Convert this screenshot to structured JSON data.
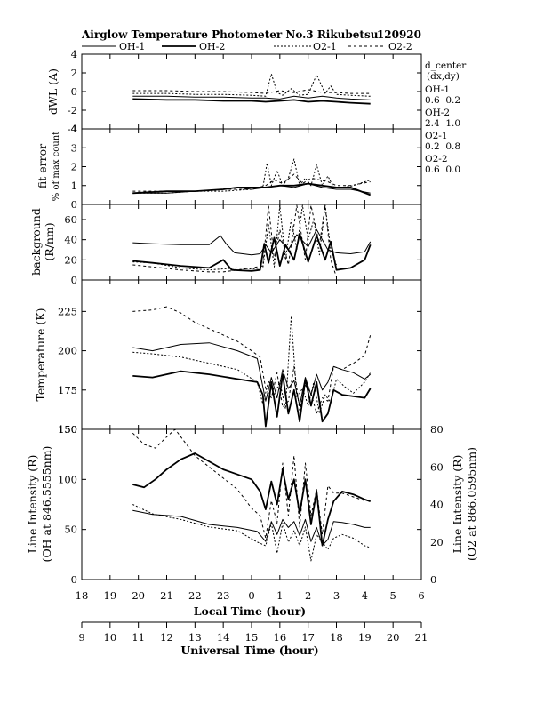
{
  "header": {
    "title": "Airglow Temperature Photometer No.3  Rikubetsu",
    "date": "120920"
  },
  "legend": [
    {
      "name": "OH-1",
      "dash": ""
    },
    {
      "name": "OH-2",
      "dash": "",
      "bold": true
    },
    {
      "name": "O2-1",
      "dash": "2,2"
    },
    {
      "name": "O2-2",
      "dash": "3,3"
    }
  ],
  "annotation": {
    "title": "d_center",
    "subtitle": "(dx,dy)",
    "entries": [
      {
        "name": "OH-1",
        "value": "0.6  0.2"
      },
      {
        "name": "OH-2",
        "value": "2.4  1.0"
      },
      {
        "name": "O2-1",
        "value": "0.2  0.8"
      },
      {
        "name": "O2-2",
        "value": "0.6  0.0"
      }
    ]
  },
  "axes": {
    "local_time": {
      "label": "Local Time (hour)",
      "ticks": [
        "18",
        "19",
        "20",
        "21",
        "22",
        "23",
        "0",
        "1",
        "2",
        "3",
        "4",
        "5",
        "6"
      ]
    },
    "universal_time": {
      "label": "Universal Time (hour)",
      "ticks": [
        "9",
        "10",
        "11",
        "12",
        "13",
        "14",
        "15",
        "16",
        "17",
        "18",
        "19",
        "20",
        "21"
      ]
    }
  },
  "chart_data": [
    {
      "type": "line",
      "panel": "dwl",
      "ylabel": "dWL (A)",
      "ylim": [
        -4,
        4
      ],
      "yticks": [
        "4",
        "2",
        "0",
        "-2",
        "-4"
      ],
      "x_unit": "Universal Time (hour)",
      "series": [
        {
          "name": "OH-1",
          "x": [
            10.8,
            12.0,
            13.0,
            14.0,
            15.0,
            15.5,
            16.0,
            16.5,
            17.0,
            17.5,
            18.0,
            18.5,
            19.2
          ],
          "y": [
            -0.5,
            -0.5,
            -0.6,
            -0.6,
            -0.7,
            -0.7,
            -0.8,
            -0.5,
            -0.7,
            -0.5,
            -0.7,
            -0.8,
            -0.9
          ]
        },
        {
          "name": "OH-2",
          "x": [
            10.8,
            12.0,
            13.0,
            14.0,
            15.0,
            15.5,
            16.0,
            16.5,
            17.0,
            17.5,
            18.0,
            18.5,
            19.2
          ],
          "y": [
            -0.8,
            -0.9,
            -0.9,
            -1.0,
            -1.0,
            -1.1,
            -1.0,
            -0.9,
            -1.1,
            -1.0,
            -1.1,
            -1.2,
            -1.3
          ]
        },
        {
          "name": "O2-1",
          "x": [
            10.8,
            12.0,
            13.0,
            14.0,
            15.0,
            15.5,
            15.7,
            15.9,
            16.1,
            16.4,
            16.7,
            17.0,
            17.3,
            17.6,
            17.8,
            18.0,
            18.5,
            19.2
          ],
          "y": [
            -0.2,
            -0.2,
            -0.3,
            -0.3,
            -0.4,
            -0.5,
            1.9,
            -0.1,
            -0.4,
            0.3,
            -0.4,
            -0.3,
            1.8,
            -0.2,
            0.6,
            -0.3,
            -0.4,
            -0.5
          ]
        },
        {
          "name": "O2-2",
          "x": [
            10.8,
            12.0,
            13.0,
            14.0,
            15.0,
            15.5,
            16.0,
            16.5,
            17.0,
            17.5,
            18.0,
            18.5,
            19.2
          ],
          "y": [
            0.1,
            0.1,
            0.0,
            0.0,
            -0.1,
            -0.2,
            0.1,
            -0.1,
            0.2,
            -0.1,
            -0.1,
            -0.2,
            -0.2
          ]
        }
      ]
    },
    {
      "type": "line",
      "panel": "fit_error",
      "ylabel": "fit error",
      "ylabel2": "% of max count",
      "ylim": [
        0,
        4
      ],
      "yticks": [
        "4",
        "3",
        "2",
        "1",
        "0"
      ],
      "x_unit": "Universal Time (hour)",
      "series": [
        {
          "name": "OH-1",
          "x": [
            10.8,
            12.0,
            13.0,
            14.0,
            14.5,
            15.0,
            15.5,
            16.0,
            16.5,
            17.0,
            17.5,
            18.0,
            18.5,
            19.2
          ],
          "y": [
            0.6,
            0.6,
            0.7,
            0.8,
            0.9,
            0.8,
            0.9,
            1.0,
            0.9,
            1.1,
            0.9,
            0.8,
            0.8,
            0.6
          ]
        },
        {
          "name": "OH-2",
          "x": [
            10.8,
            12.0,
            13.0,
            14.0,
            14.5,
            15.0,
            15.5,
            16.0,
            16.5,
            17.0,
            17.5,
            18.0,
            18.5,
            19.2
          ],
          "y": [
            0.6,
            0.7,
            0.7,
            0.8,
            0.9,
            0.9,
            0.9,
            1.0,
            1.0,
            1.1,
            1.0,
            0.9,
            0.9,
            0.5
          ]
        },
        {
          "name": "O2-1",
          "x": [
            10.8,
            12.0,
            13.0,
            14.0,
            15.0,
            15.4,
            15.55,
            15.7,
            15.9,
            16.1,
            16.3,
            16.5,
            16.7,
            16.9,
            17.1,
            17.3,
            17.5,
            17.7,
            17.9,
            18.2,
            18.6,
            19.2
          ],
          "y": [
            0.6,
            0.6,
            0.7,
            0.7,
            0.8,
            0.9,
            2.2,
            1.0,
            1.8,
            1.0,
            1.4,
            2.4,
            1.0,
            1.4,
            1.0,
            2.1,
            1.0,
            1.5,
            0.9,
            0.9,
            1.0,
            1.3
          ]
        },
        {
          "name": "O2-2",
          "x": [
            10.8,
            12.0,
            13.0,
            14.0,
            15.0,
            15.5,
            15.8,
            16.1,
            16.5,
            16.8,
            17.1,
            17.4,
            17.7,
            18.0,
            18.5,
            19.2
          ],
          "y": [
            0.7,
            0.7,
            0.7,
            0.8,
            0.8,
            1.0,
            1.3,
            1.1,
            1.6,
            1.1,
            1.4,
            1.3,
            1.2,
            1.0,
            1.0,
            1.2
          ]
        }
      ]
    },
    {
      "type": "line",
      "panel": "background",
      "ylabel": "background",
      "ylabel2": "(R/nm)",
      "ylim": [
        0,
        75
      ],
      "yticks": [
        "60",
        "40",
        "20",
        "0"
      ],
      "x_unit": "Universal Time (hour)",
      "series": [
        {
          "name": "OH-1",
          "x": [
            10.8,
            11.5,
            12.5,
            13.5,
            13.9,
            14.1,
            14.4,
            15.0,
            15.3,
            15.5,
            15.7,
            16.0,
            16.3,
            16.6,
            17.0,
            17.3,
            17.7,
            18.0,
            18.5,
            19.0,
            19.2
          ],
          "y": [
            37,
            36,
            35,
            35,
            44,
            36,
            27,
            25,
            26,
            35,
            27,
            40,
            30,
            45,
            33,
            50,
            30,
            27,
            26,
            28,
            38
          ]
        },
        {
          "name": "OH-2",
          "x": [
            10.8,
            11.5,
            12.5,
            13.5,
            14.0,
            14.3,
            15.0,
            15.3,
            15.45,
            15.6,
            15.8,
            16.0,
            16.2,
            16.5,
            16.7,
            17.0,
            17.3,
            17.6,
            17.8,
            18.0,
            18.5,
            19.0,
            19.2
          ],
          "y": [
            19,
            17,
            14,
            12,
            20,
            10,
            9,
            10,
            36,
            17,
            42,
            14,
            35,
            20,
            46,
            18,
            44,
            20,
            38,
            10,
            12,
            20,
            35
          ]
        },
        {
          "name": "O2-1",
          "x": [
            10.8,
            11.5,
            12.5,
            13.5,
            14.0,
            14.5,
            15.0,
            15.4,
            15.6,
            15.8,
            16.0,
            16.2,
            16.4,
            16.6,
            16.8,
            17.0,
            17.2,
            17.4,
            17.6,
            17.8,
            18.0
          ],
          "y": [
            18,
            17,
            12,
            10,
            11,
            12,
            11,
            12,
            55,
            13,
            74,
            20,
            60,
            30,
            74,
            40,
            60,
            25,
            74,
            30,
            15
          ]
        },
        {
          "name": "O2-2",
          "x": [
            10.8,
            11.5,
            12.5,
            13.5,
            14.0,
            14.5,
            15.0,
            15.4,
            15.6,
            15.8,
            16.0,
            16.3,
            16.6,
            16.9,
            17.1,
            17.4,
            17.6,
            17.8,
            18.0
          ],
          "y": [
            15,
            13,
            10,
            8,
            8,
            10,
            12,
            14,
            74,
            20,
            50,
            15,
            74,
            20,
            74,
            35,
            74,
            20,
            3
          ]
        }
      ]
    },
    {
      "type": "line",
      "panel": "temperature",
      "ylabel": "Temperature (K)",
      "ylim": [
        150,
        245
      ],
      "yticks": [
        "225",
        "200",
        "175",
        "150"
      ],
      "x_unit": "Universal Time (hour)",
      "series": [
        {
          "name": "OH-1",
          "x": [
            10.8,
            11.5,
            12.5,
            13.5,
            14.5,
            15.2,
            15.5,
            15.7,
            15.9,
            16.1,
            16.3,
            16.5,
            16.7,
            16.9,
            17.1,
            17.3,
            17.5,
            17.7,
            17.9,
            18.2,
            18.6,
            19.0,
            19.2
          ],
          "y": [
            202,
            200,
            204,
            205,
            200,
            195,
            168,
            183,
            170,
            188,
            176,
            181,
            165,
            183,
            172,
            185,
            175,
            180,
            190,
            188,
            186,
            182,
            185
          ]
        },
        {
          "name": "OH-2",
          "x": [
            10.8,
            11.5,
            12.5,
            13.5,
            14.5,
            15.2,
            15.4,
            15.5,
            15.7,
            15.9,
            16.1,
            16.3,
            16.5,
            16.7,
            16.9,
            17.1,
            17.3,
            17.5,
            17.7,
            17.9,
            18.2,
            18.6,
            19.0,
            19.2
          ],
          "y": [
            184,
            183,
            187,
            185,
            182,
            180,
            172,
            152,
            180,
            158,
            185,
            160,
            175,
            155,
            182,
            165,
            180,
            155,
            160,
            175,
            172,
            171,
            170,
            176
          ]
        },
        {
          "name": "O2-1",
          "x": [
            10.8,
            11.5,
            12.5,
            13.5,
            14.5,
            15.2,
            15.4,
            15.6,
            15.8,
            16.0,
            16.2,
            16.4,
            16.6,
            16.8,
            17.0,
            17.2,
            17.4,
            17.6,
            17.8,
            18.0,
            18.3,
            18.6,
            19.0,
            19.2
          ],
          "y": [
            199,
            198,
            196,
            192,
            188,
            180,
            166,
            181,
            172,
            180,
            163,
            222,
            170,
            176,
            165,
            180,
            160,
            172,
            167,
            182,
            177,
            173,
            180,
            186
          ]
        },
        {
          "name": "O2-2",
          "x": [
            10.8,
            11.5,
            12.0,
            12.5,
            13.0,
            13.5,
            14.0,
            14.5,
            15.0,
            15.3,
            15.5,
            15.7,
            15.9,
            16.1,
            16.3,
            16.5,
            16.7,
            16.9,
            17.1,
            17.3,
            17.5,
            17.7,
            17.9,
            18.2,
            18.6,
            19.0,
            19.2
          ],
          "y": [
            225,
            226,
            228,
            224,
            218,
            214,
            210,
            206,
            200,
            196,
            176,
            170,
            186,
            164,
            168,
            190,
            162,
            178,
            173,
            160,
            170,
            168,
            190,
            188,
            192,
            197,
            210
          ]
        }
      ]
    },
    {
      "type": "line",
      "panel": "line_intensity",
      "ylabel": "Line Intensity (R)",
      "ylabel2": "(OH at 846.5555nm)",
      "ylabel_right": "Line Intensity (R)",
      "ylabel_right2": "(O2 at 866.0595nm)",
      "ylim": [
        0,
        150
      ],
      "ylim_right": [
        0,
        80
      ],
      "yticks": [
        "150",
        "100",
        "50",
        "0"
      ],
      "yticks_right": [
        "80",
        "60",
        "40",
        "20",
        "0"
      ],
      "x_unit": "Universal Time (hour)",
      "series": [
        {
          "name": "OH-1",
          "axis": "left",
          "x": [
            10.8,
            11.5,
            12.5,
            13.5,
            14.5,
            15.2,
            15.5,
            15.7,
            15.9,
            16.1,
            16.3,
            16.5,
            16.7,
            16.9,
            17.1,
            17.3,
            17.5,
            17.7,
            17.9,
            18.2,
            18.6,
            19.0,
            19.2
          ],
          "y": [
            69,
            65,
            63,
            55,
            52,
            48,
            38,
            58,
            45,
            60,
            52,
            58,
            44,
            60,
            38,
            52,
            34,
            40,
            58,
            57,
            55,
            52,
            52
          ]
        },
        {
          "name": "OH-2",
          "axis": "left",
          "x": [
            10.8,
            11.2,
            11.6,
            12.0,
            12.5,
            13.0,
            13.5,
            14.0,
            14.5,
            15.0,
            15.3,
            15.5,
            15.7,
            15.9,
            16.1,
            16.3,
            16.5,
            16.7,
            16.9,
            17.1,
            17.3,
            17.5,
            17.7,
            17.9,
            18.2,
            18.6,
            19.0,
            19.2
          ],
          "y": [
            95,
            92,
            100,
            110,
            120,
            126,
            118,
            110,
            105,
            100,
            88,
            70,
            98,
            75,
            110,
            80,
            100,
            66,
            100,
            55,
            88,
            34,
            60,
            78,
            88,
            85,
            80,
            78
          ]
        },
        {
          "name": "O2-1",
          "axis": "right",
          "x": [
            10.8,
            11.5,
            12.5,
            13.5,
            14.5,
            15.2,
            15.5,
            15.7,
            15.9,
            16.1,
            16.3,
            16.5,
            16.7,
            16.9,
            17.1,
            17.3,
            17.5,
            17.7,
            17.9,
            18.2,
            18.6,
            19.0,
            19.2
          ],
          "y": [
            40,
            35,
            32,
            28,
            26,
            20,
            18,
            30,
            14,
            30,
            20,
            26,
            18,
            28,
            10,
            24,
            20,
            16,
            22,
            24,
            22,
            18,
            17
          ]
        },
        {
          "name": "O2-2",
          "axis": "right",
          "x": [
            10.8,
            11.2,
            11.6,
            12.0,
            12.3,
            12.6,
            13.0,
            13.5,
            14.0,
            14.5,
            15.0,
            15.3,
            15.5,
            15.7,
            15.9,
            16.1,
            16.3,
            16.5,
            16.7,
            16.9,
            17.1,
            17.3,
            17.5,
            17.7,
            17.9,
            18.2,
            18.6,
            19.0,
            19.2
          ],
          "y": [
            78,
            72,
            70,
            76,
            82,
            74,
            66,
            60,
            54,
            48,
            38,
            34,
            22,
            42,
            30,
            62,
            34,
            66,
            28,
            62,
            34,
            48,
            24,
            50,
            46,
            46,
            44,
            42,
            42
          ]
        }
      ]
    }
  ]
}
